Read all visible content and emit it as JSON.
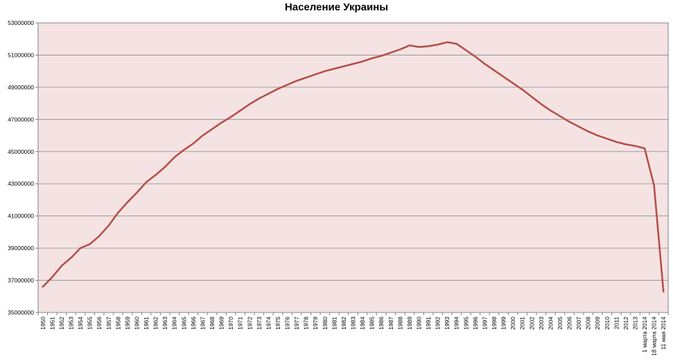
{
  "chart_data": {
    "type": "line",
    "title": "Население Украины",
    "xlabel": "",
    "ylabel": "",
    "ylim": [
      35000000,
      53000000
    ],
    "yticks": [
      "35000000",
      "37000000",
      "39000000",
      "41000000",
      "43000000",
      "45000000",
      "47000000",
      "49000000",
      "51000000",
      "53000000"
    ],
    "grid": true,
    "legend": "none",
    "colors": {
      "line": "#b5504a",
      "plot_bg": "#f5e3e3",
      "grid": "#8a8a8a"
    },
    "categories": [
      "1950",
      "1951",
      "1952",
      "1953",
      "1954",
      "1955",
      "1956",
      "1957",
      "1958",
      "1959",
      "1960",
      "1961",
      "1962",
      "1963",
      "1964",
      "1965",
      "1966",
      "1967",
      "1968",
      "1969",
      "1970",
      "1971",
      "1972",
      "1973",
      "1974",
      "1975",
      "1976",
      "1977",
      "1978",
      "1979",
      "1980",
      "1981",
      "1982",
      "1983",
      "1984",
      "1985",
      "1986",
      "1987",
      "1988",
      "1989",
      "1990",
      "1991",
      "1992",
      "1993",
      "1994",
      "1995",
      "1996",
      "1997",
      "1998",
      "1999",
      "2000",
      "2001",
      "2002",
      "2003",
      "2004",
      "2005",
      "2006",
      "2007",
      "2008",
      "2009",
      "2010",
      "2011",
      "2012",
      "2013",
      "1 марта 2014",
      "18 марта 2014",
      "11 мая 2014"
    ],
    "series": [
      {
        "values": [
          36600000,
          37200000,
          37900000,
          38400000,
          39000000,
          39250000,
          39750000,
          40400000,
          41200000,
          41850000,
          42450000,
          43100000,
          43550000,
          44050000,
          44650000,
          45100000,
          45500000,
          46000000,
          46400000,
          46800000,
          47150000,
          47550000,
          47950000,
          48300000,
          48600000,
          48900000,
          49150000,
          49400000,
          49600000,
          49800000,
          50000000,
          50150000,
          50300000,
          50450000,
          50600000,
          50800000,
          50950000,
          51150000,
          51350000,
          51600000,
          51500000,
          51550000,
          51650000,
          51800000,
          51700000,
          51300000,
          50900000,
          50450000,
          50050000,
          49650000,
          49250000,
          48850000,
          48400000,
          47950000,
          47550000,
          47200000,
          46850000,
          46550000,
          46250000,
          46000000,
          45800000,
          45600000,
          45450000,
          45350000,
          45200000,
          42900000,
          36300000
        ]
      }
    ]
  }
}
